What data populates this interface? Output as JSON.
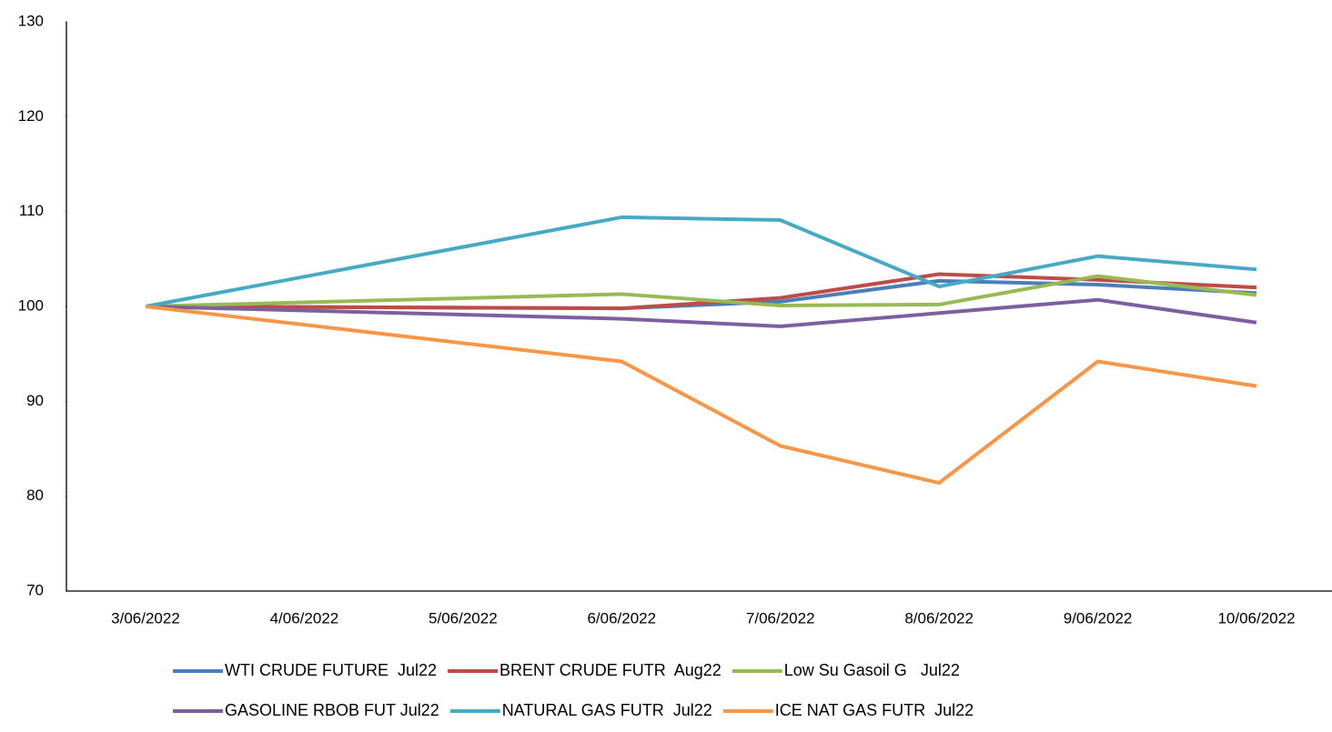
{
  "chart_data": {
    "type": "line",
    "categories": [
      "3/06/2022",
      "4/06/2022",
      "5/06/2022",
      "6/06/2022",
      "7/06/2022",
      "8/06/2022",
      "9/06/2022",
      "10/06/2022"
    ],
    "connect_gaps": true,
    "ylim": [
      70,
      130
    ],
    "yticks": [
      70,
      80,
      90,
      100,
      110,
      120,
      130
    ],
    "grid": false,
    "legend": "bottom",
    "series": [
      {
        "name": "WTI CRUDE FUTURE  Jul22",
        "color": "#4a7ebb",
        "values": [
          100,
          null,
          null,
          99.8,
          100.5,
          102.7,
          102.3,
          101.4
        ]
      },
      {
        "name": "BRENT CRUDE FUTR  Aug22",
        "color": "#be4b48",
        "values": [
          100,
          null,
          null,
          99.8,
          100.9,
          103.4,
          102.8,
          102.0
        ]
      },
      {
        "name": "Low Su Gasoil G   Jul22",
        "color": "#98b954",
        "values": [
          100,
          null,
          null,
          101.3,
          100.1,
          100.2,
          103.2,
          101.2
        ]
      },
      {
        "name": "GASOLINE RBOB FUT Jul22",
        "color": "#7d5fa0",
        "values": [
          100,
          null,
          null,
          98.7,
          97.9,
          99.3,
          100.7,
          98.3
        ]
      },
      {
        "name": "NATURAL GAS FUTR  Jul22",
        "color": "#46aac5",
        "values": [
          100,
          null,
          null,
          109.4,
          109.1,
          102.1,
          105.3,
          103.9
        ]
      },
      {
        "name": "ICE NAT GAS FUTR  Jul22",
        "color": "#f79646",
        "values": [
          100,
          null,
          null,
          94.2,
          85.3,
          81.4,
          94.2,
          91.6
        ]
      }
    ]
  }
}
